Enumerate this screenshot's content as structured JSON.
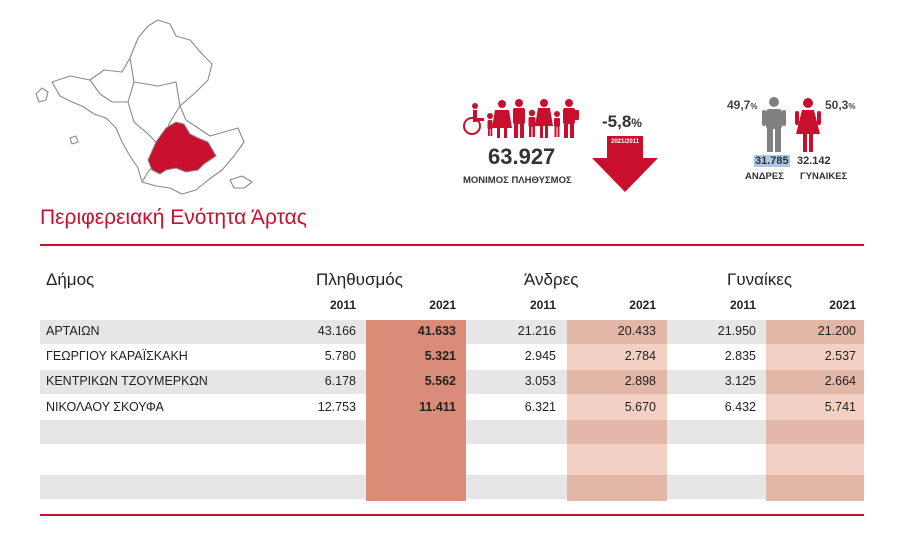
{
  "header": {
    "total_population": "63.927",
    "population_label": "ΜΟΝΙΜΟΣ ΠΛΗΘΥΣΜΟΣ",
    "change": "-5,8",
    "change_unit": "%",
    "change_period": "2021/2011",
    "men_pct": "49,7",
    "women_pct": "50,3",
    "pct_unit": "%",
    "men_count": "31.785",
    "women_count": "32.142",
    "men_label": "ΑΝΔΡΕΣ",
    "women_label": "ΓΥΝΑΙΚΕΣ"
  },
  "title": "Περιφερειακή Ενότητα Άρτας",
  "table": {
    "headers": {
      "municipality": "Δήμος",
      "population": "Πληθυσμός",
      "men": "Άνδρες",
      "women": "Γυναίκες"
    },
    "years": [
      "2011",
      "2021",
      "2011",
      "2021",
      "2011",
      "2021"
    ],
    "rows": [
      {
        "name": "ΑΡΤΑΙΩΝ",
        "pop2011": "43.166",
        "pop2021": "41.633",
        "men2011": "21.216",
        "men2021": "20.433",
        "women2011": "21.950",
        "women2021": "21.200"
      },
      {
        "name": "ΓΕΩΡΓΙΟΥ ΚΑΡΑΪΣΚΑΚΗ",
        "pop2011": "5.780",
        "pop2021": "5.321",
        "men2011": "2.945",
        "men2021": "2.784",
        "women2011": "2.835",
        "women2021": "2.537"
      },
      {
        "name": "ΚΕΝΤΡΙΚΩΝ ΤΖΟΥΜΕΡΚΩΝ",
        "pop2011": "6.178",
        "pop2021": "5.562",
        "men2011": "3.053",
        "men2021": "2.898",
        "women2011": "3.125",
        "women2021": "2.664"
      },
      {
        "name": "ΝΙΚΟΛΑΟΥ ΣΚΟΥΦΑ",
        "pop2011": "12.753",
        "pop2021": "11.411",
        "men2011": "6.321",
        "men2021": "5.670",
        "women2011": "6.432",
        "women2021": "5.741"
      }
    ]
  },
  "colors": {
    "accent_red": "#c8102e",
    "pop2021_fill": "#da8c78",
    "gender2021_fill_dark": "#e2b7a8",
    "gender2021_fill_light": "#f2d1c4",
    "row_gray": "#e6e6e6"
  }
}
